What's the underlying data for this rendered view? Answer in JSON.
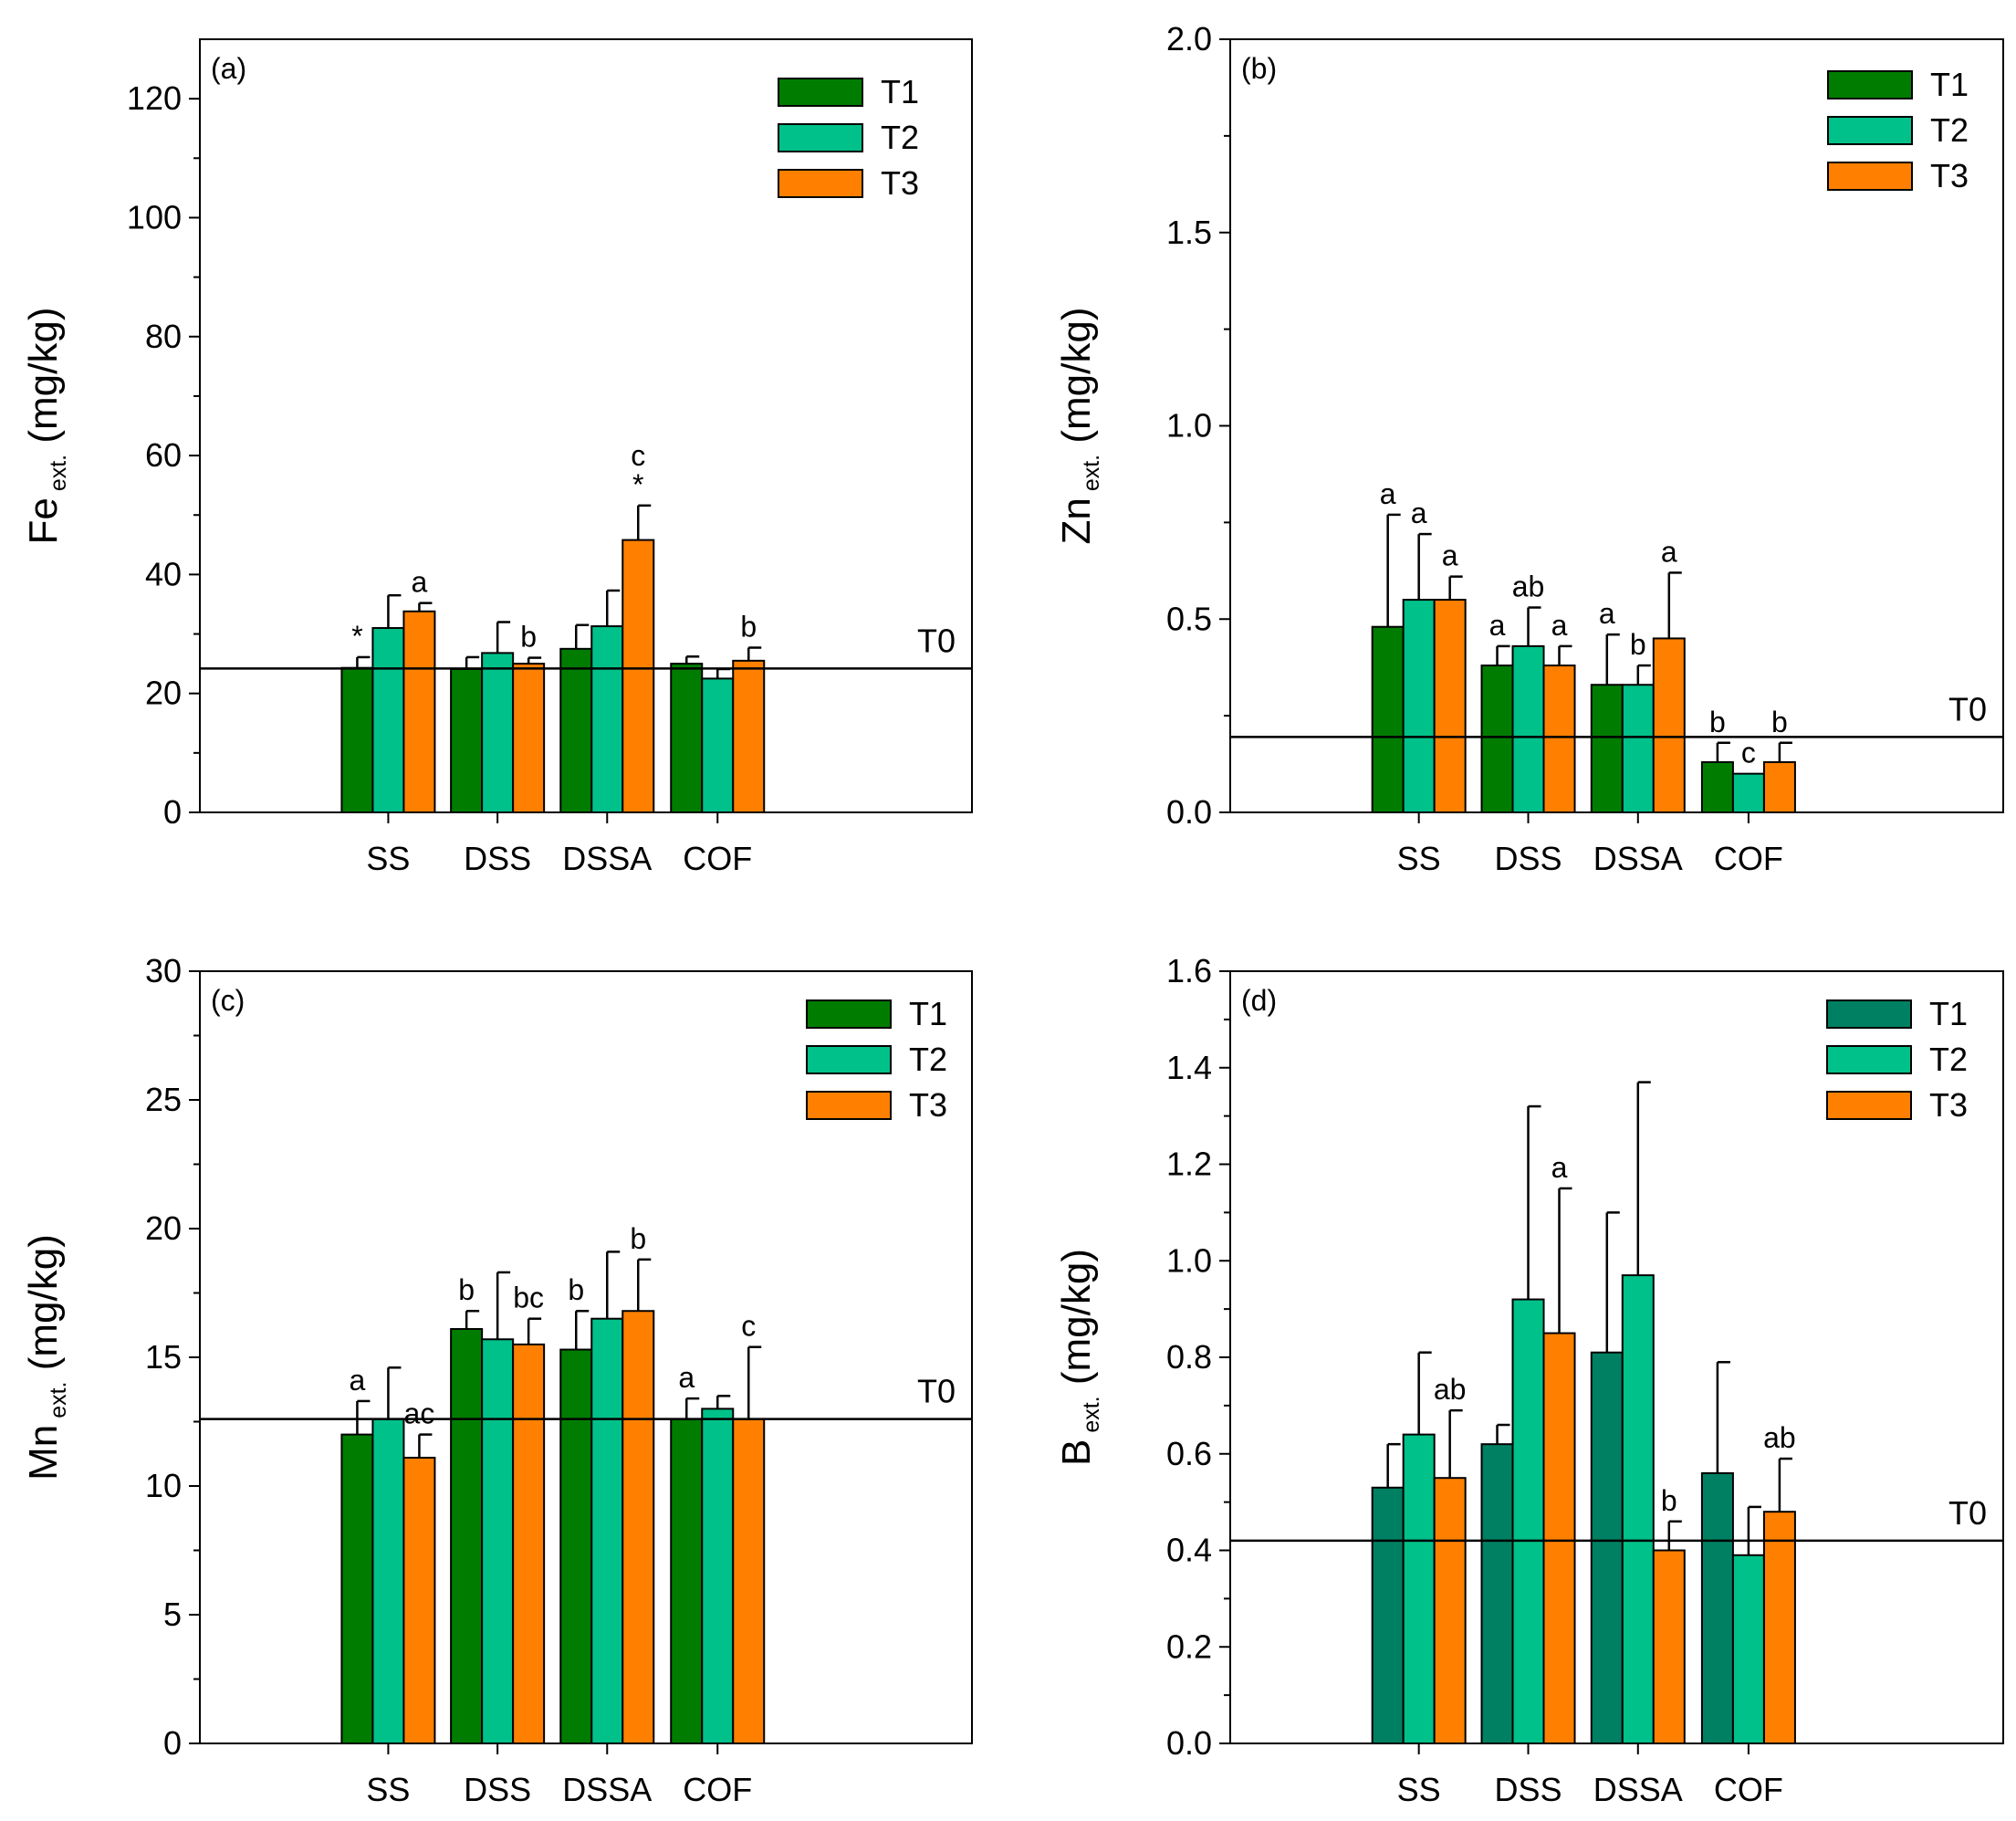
{
  "chart_data": [
    {
      "type": "bar",
      "panel_label": "(a)",
      "ylabel_main": "Fe",
      "ylabel_sub": "ext.",
      "ylabel_unit": "(mg/kg)",
      "ylim": [
        0,
        130
      ],
      "yticks": [
        0,
        20,
        40,
        60,
        80,
        100,
        120
      ],
      "ytick_labels": [
        "0",
        "20",
        "40",
        "60",
        "80",
        "100",
        "120"
      ],
      "categories": [
        "SS",
        "DSS",
        "DSSA",
        "COF"
      ],
      "reference_line": {
        "label": "T0",
        "value": 24.2
      },
      "series": [
        {
          "name": "T1",
          "color": "#007d00",
          "values": [
            24.3,
            24.1,
            27.5,
            25.0
          ],
          "errors": [
            1.8,
            2.0,
            4.0,
            1.2
          ],
          "letters": [
            "*",
            "",
            "",
            ""
          ]
        },
        {
          "name": "T2",
          "color": "#00c18a",
          "values": [
            31.0,
            26.8,
            31.3,
            22.5
          ],
          "errors": [
            5.5,
            5.2,
            6.0,
            1.6
          ],
          "letters": [
            "",
            "",
            "",
            ""
          ]
        },
        {
          "name": "T3",
          "color": "#ff8000",
          "values": [
            33.8,
            25.0,
            45.8,
            25.5
          ],
          "errors": [
            1.4,
            1.0,
            5.8,
            2.2
          ],
          "letters": [
            "a",
            "b",
            "c\n*",
            "b"
          ]
        }
      ]
    },
    {
      "type": "bar",
      "panel_label": "(b)",
      "ylabel_main": "Zn",
      "ylabel_sub": "ext.",
      "ylabel_unit": "(mg/kg)",
      "ylim": [
        0,
        2.0
      ],
      "yticks": [
        0,
        0.5,
        1.0,
        1.5,
        2.0
      ],
      "ytick_labels": [
        "0.0",
        "0.5",
        "1.0",
        "1.5",
        "2.0"
      ],
      "categories": [
        "SS",
        "DSS",
        "DSSA",
        "COF"
      ],
      "reference_line": {
        "label": "T0",
        "value": 0.195
      },
      "series": [
        {
          "name": "T1",
          "color": "#007d00",
          "values": [
            0.48,
            0.38,
            0.33,
            0.13
          ],
          "errors": [
            0.29,
            0.05,
            0.13,
            0.05
          ],
          "letters": [
            "a",
            "a",
            "a",
            "b"
          ]
        },
        {
          "name": "T2",
          "color": "#00c18a",
          "values": [
            0.55,
            0.43,
            0.33,
            0.1
          ],
          "errors": [
            0.17,
            0.1,
            0.05,
            0.0
          ],
          "letters": [
            "a",
            "ab",
            "b",
            "c"
          ]
        },
        {
          "name": "T3",
          "color": "#ff8000",
          "values": [
            0.55,
            0.38,
            0.45,
            0.13
          ],
          "errors": [
            0.06,
            0.05,
            0.17,
            0.05
          ],
          "letters": [
            "a",
            "a",
            "a",
            "b"
          ]
        }
      ]
    },
    {
      "type": "bar",
      "panel_label": "(c)",
      "ylabel_main": "Mn",
      "ylabel_sub": "ext.",
      "ylabel_unit": "(mg/kg)",
      "ylim": [
        0,
        30
      ],
      "yticks": [
        0,
        5,
        10,
        15,
        20,
        25,
        30
      ],
      "ytick_labels": [
        "0",
        "5",
        "10",
        "15",
        "20",
        "25",
        "30"
      ],
      "categories": [
        "SS",
        "DSS",
        "DSSA",
        "COF"
      ],
      "reference_line": {
        "label": "T0",
        "value": 12.6
      },
      "series": [
        {
          "name": "T1",
          "color": "#007d00",
          "values": [
            12.0,
            16.1,
            15.3,
            12.6
          ],
          "errors": [
            1.3,
            0.7,
            1.5,
            0.8
          ],
          "letters": [
            "a",
            "b",
            "b",
            "a"
          ]
        },
        {
          "name": "T2",
          "color": "#00c18a",
          "values": [
            12.6,
            15.7,
            16.5,
            13.0
          ],
          "errors": [
            2.0,
            2.6,
            2.6,
            0.5
          ],
          "letters": [
            "",
            "",
            "",
            ""
          ]
        },
        {
          "name": "T3",
          "color": "#ff8000",
          "values": [
            11.1,
            15.5,
            16.8,
            12.6
          ],
          "errors": [
            0.9,
            1.0,
            2.0,
            2.8
          ],
          "letters": [
            "ac",
            "bc",
            "b",
            "c"
          ]
        }
      ]
    },
    {
      "type": "bar",
      "panel_label": "(d)",
      "ylabel_main": "B",
      "ylabel_sub": "ext.",
      "ylabel_unit": "(mg/kg)",
      "ylim": [
        0,
        1.6
      ],
      "yticks": [
        0,
        0.2,
        0.4,
        0.6,
        0.8,
        1.0,
        1.2,
        1.4,
        1.6
      ],
      "ytick_labels": [
        "0.0",
        "0.2",
        "0.4",
        "0.6",
        "0.8",
        "1.0",
        "1.2",
        "1.4",
        "1.6"
      ],
      "categories": [
        "SS",
        "DSS",
        "DSSA",
        "COF"
      ],
      "reference_line": {
        "label": "T0",
        "value": 0.42
      },
      "series": [
        {
          "name": "T1",
          "color": "#008062",
          "values": [
            0.53,
            0.62,
            0.81,
            0.56
          ],
          "errors": [
            0.09,
            0.04,
            0.29,
            0.23
          ],
          "letters": [
            "",
            "",
            "",
            ""
          ]
        },
        {
          "name": "T2",
          "color": "#00c18a",
          "values": [
            0.64,
            0.92,
            0.97,
            0.39
          ],
          "errors": [
            0.17,
            0.4,
            0.4,
            0.1
          ],
          "letters": [
            "",
            "",
            "",
            ""
          ]
        },
        {
          "name": "T3",
          "color": "#ff8000",
          "values": [
            0.55,
            0.85,
            0.4,
            0.48
          ],
          "errors": [
            0.14,
            0.3,
            0.06,
            0.11
          ],
          "letters": [
            "ab",
            "a",
            "b",
            "ab"
          ]
        }
      ]
    }
  ]
}
